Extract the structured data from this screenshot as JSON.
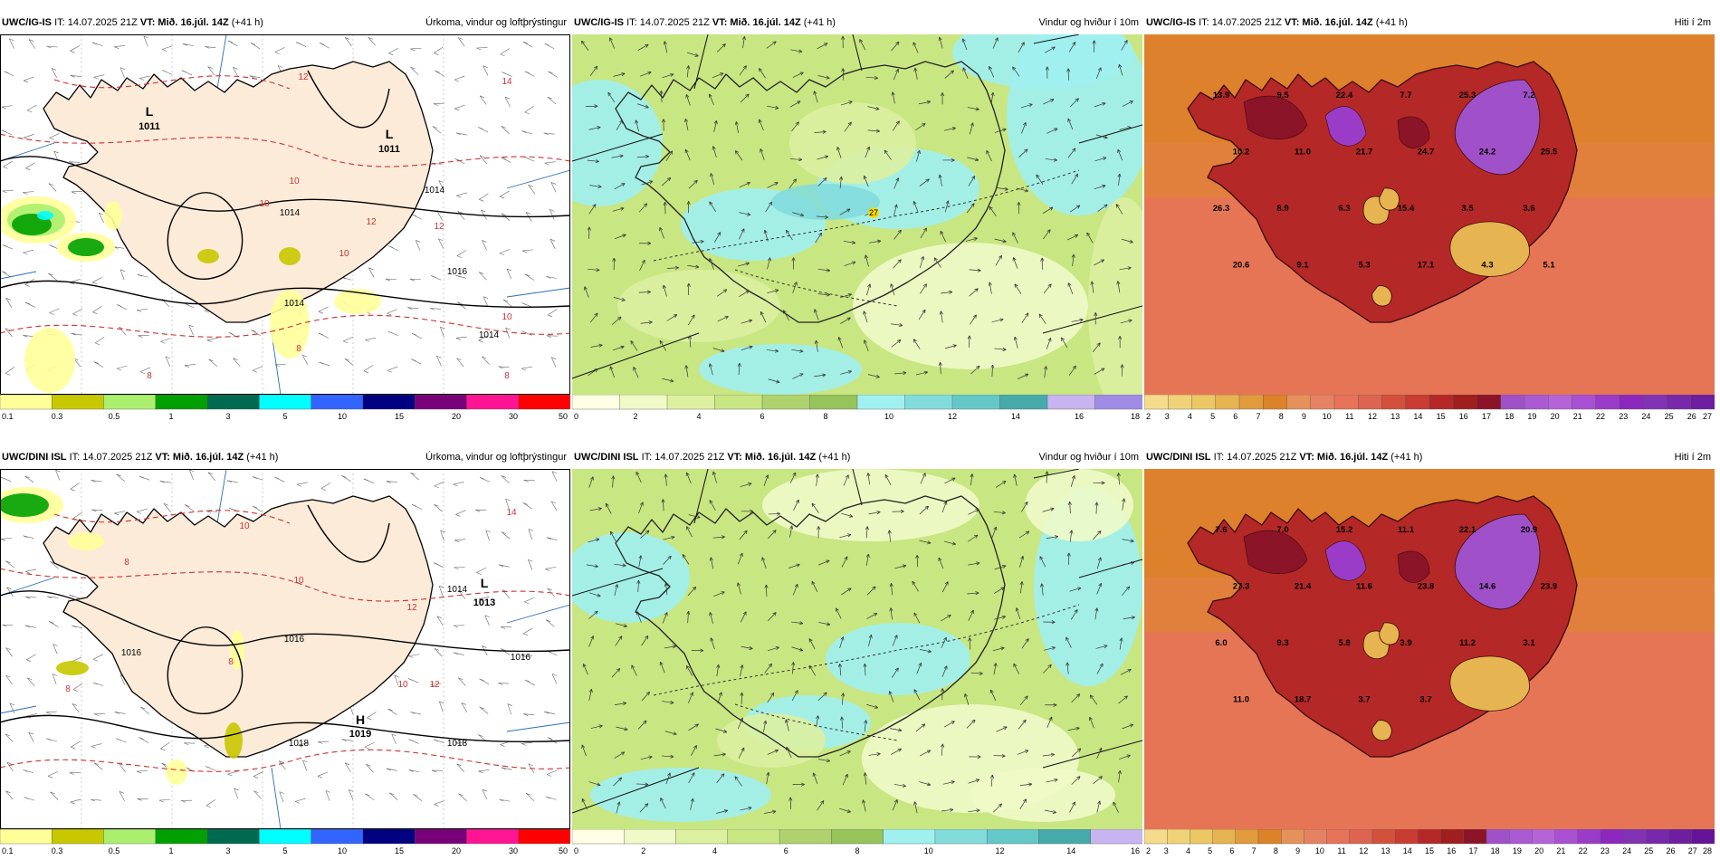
{
  "panels": [
    {
      "model": "UWC/IG-IS",
      "it": "IT: 14.07.2025 21Z",
      "vt_label": "VT:",
      "vt": "Mið. 16.júl. 14Z",
      "lead": "(+41 h)",
      "title": "Úrkoma, vindur og loftþrýstingur",
      "kind": "precip",
      "colorbar": {
        "colors": [
          "#ffff99",
          "#c8c800",
          "#aaf06e",
          "#00a000",
          "#006a50",
          "#00ffff",
          "#3264ff",
          "#000080",
          "#780078",
          "#ff1493",
          "#ff0000"
        ],
        "labels": [
          "0.1",
          "0.3",
          "0.5",
          "1",
          "3",
          "5",
          "10",
          "15",
          "20",
          "30",
          "50"
        ]
      },
      "labels": [
        {
          "t": "L",
          "kind": "pres_letter"
        },
        {
          "t": "1011",
          "kind": "pres_value"
        },
        {
          "t": "L",
          "kind": "pres_letter"
        },
        {
          "t": "1011",
          "kind": "pres_value"
        },
        {
          "t": "12",
          "kind": "red"
        },
        {
          "t": "14",
          "kind": "red"
        },
        {
          "t": "10",
          "kind": "red"
        },
        {
          "t": "10",
          "kind": "red"
        },
        {
          "t": "12",
          "kind": "red"
        },
        {
          "t": "10",
          "kind": "red"
        },
        {
          "t": "12",
          "kind": "red"
        },
        {
          "t": "10",
          "kind": "red"
        },
        {
          "t": "8",
          "kind": "red"
        },
        {
          "t": "8",
          "kind": "red"
        },
        {
          "t": "8",
          "kind": "red"
        },
        {
          "t": "1014",
          "kind": "iso"
        },
        {
          "t": "1014",
          "kind": "iso"
        },
        {
          "t": "1016",
          "kind": "iso"
        },
        {
          "t": "1014",
          "kind": "iso"
        },
        {
          "t": "1014",
          "kind": "iso"
        }
      ]
    },
    {
      "model": "UWC/IG-IS",
      "it": "IT: 14.07.2025 21Z",
      "vt_label": "VT:",
      "vt": "Mið. 16.júl. 14Z",
      "lead": "(+41 h)",
      "title": "Vindur og hviður í 10m",
      "kind": "wind",
      "colorbar": {
        "colors": [
          "#ffffe6",
          "#f0fac8",
          "#dcf0a0",
          "#c8e682",
          "#afd26e",
          "#96c35a",
          "#a0f0f0",
          "#82dcdc",
          "#64c8c8",
          "#46aaaa",
          "#c8b4f0",
          "#a08ce6"
        ],
        "labels": [
          "0",
          "2",
          "4",
          "6",
          "8",
          "10",
          "12",
          "14",
          "16",
          "18"
        ]
      },
      "labels": [
        {
          "t": "27",
          "kind": "gust"
        }
      ]
    },
    {
      "model": "UWC/IG-IS",
      "it": "IT: 14.07.2025 21Z",
      "vt_label": "VT:",
      "vt": "Mið. 16.júl. 14Z",
      "lead": "(+41 h)",
      "title": "Hiti í 2m",
      "kind": "temp",
      "colorbar": {
        "colors": [
          "#f5dc8c",
          "#f0d278",
          "#ebc864",
          "#e6b450",
          "#e19b3c",
          "#dc8228",
          "#e6915a",
          "#e68264",
          "#e6735a",
          "#dc6450",
          "#d2503c",
          "#c83c32",
          "#b42828",
          "#a01e1e",
          "#8c1428",
          "#a050c8",
          "#aa5ad2",
          "#b464d7",
          "#aa50d2",
          "#9b3cc8",
          "#8c28be",
          "#8232b4",
          "#7828aa",
          "#6e1ea0"
        ],
        "labels": [
          "2",
          "3",
          "4",
          "5",
          "6",
          "7",
          "8",
          "9",
          "10",
          "11",
          "12",
          "13",
          "14",
          "15",
          "16",
          "17",
          "18",
          "19",
          "20",
          "21",
          "22",
          "23",
          "24",
          "25",
          "26",
          "27"
        ]
      },
      "labels": [
        {
          "t": "13.9"
        },
        {
          "t": "9.5"
        },
        {
          "t": "22.4"
        },
        {
          "t": "7.7"
        },
        {
          "t": "25.3"
        },
        {
          "t": "7.2"
        },
        {
          "t": "10.2"
        },
        {
          "t": "11.0"
        },
        {
          "t": "21.7"
        },
        {
          "t": "24.7"
        },
        {
          "t": "24.2"
        },
        {
          "t": "25.5"
        },
        {
          "t": "26.3"
        },
        {
          "t": "8.9"
        },
        {
          "t": "6.3"
        },
        {
          "t": "15.4"
        },
        {
          "t": "3.5"
        },
        {
          "t": "3.6"
        },
        {
          "t": "20.6"
        },
        {
          "t": "9.1"
        },
        {
          "t": "5.3"
        },
        {
          "t": "17.1"
        },
        {
          "t": "4.3"
        },
        {
          "t": "5.1"
        }
      ]
    },
    {
      "model": "UWC/DINI ISL",
      "it": "IT: 14.07.2025 21Z",
      "vt_label": "VT:",
      "vt": "Mið. 16.júl. 14Z",
      "lead": "(+41 h)",
      "title": "Úrkoma, vindur og loftþrýstingur",
      "kind": "precip",
      "colorbar": {
        "colors": [
          "#ffff99",
          "#c8c800",
          "#aaf06e",
          "#00a000",
          "#006a50",
          "#00ffff",
          "#3264ff",
          "#000080",
          "#780078",
          "#ff1493",
          "#ff0000"
        ],
        "labels": [
          "0.1",
          "0.3",
          "0.5",
          "1",
          "3",
          "5",
          "10",
          "15",
          "20",
          "30",
          "50"
        ]
      },
      "labels": [
        {
          "t": "L",
          "kind": "pres_letter"
        },
        {
          "t": "1013",
          "kind": "pres_value"
        },
        {
          "t": "H",
          "kind": "pres_letter"
        },
        {
          "t": "1019",
          "kind": "pres_value"
        },
        {
          "t": "10",
          "kind": "red"
        },
        {
          "t": "14",
          "kind": "red"
        },
        {
          "t": "8",
          "kind": "red"
        },
        {
          "t": "10",
          "kind": "red"
        },
        {
          "t": "12",
          "kind": "red"
        },
        {
          "t": "8",
          "kind": "red"
        },
        {
          "t": "8",
          "kind": "red"
        },
        {
          "t": "12",
          "kind": "red"
        },
        {
          "t": "10",
          "kind": "red"
        },
        {
          "t": "1016",
          "kind": "iso"
        },
        {
          "t": "1014",
          "kind": "iso"
        },
        {
          "t": "1016",
          "kind": "iso"
        },
        {
          "t": "1018",
          "kind": "iso"
        },
        {
          "t": "1016",
          "kind": "iso"
        },
        {
          "t": "1018",
          "kind": "iso"
        }
      ]
    },
    {
      "model": "UWC/DINI ISL",
      "it": "IT: 14.07.2025 21Z",
      "vt_label": "VT:",
      "vt": "Mið. 16.júl. 14Z",
      "lead": "(+41 h)",
      "title": "Vindur og hviður í 10m",
      "kind": "wind",
      "colorbar": {
        "colors": [
          "#ffffe6",
          "#f0fac8",
          "#dcf0a0",
          "#c8e682",
          "#afd26e",
          "#96c35a",
          "#a0f0f0",
          "#82dcdc",
          "#64c8c8",
          "#46aaaa",
          "#c8b4f0"
        ],
        "labels": [
          "0",
          "2",
          "4",
          "6",
          "8",
          "10",
          "12",
          "14",
          "16"
        ]
      },
      "labels": []
    },
    {
      "model": "UWC/DINI ISL",
      "it": "IT: 14.07.2025 21Z",
      "vt_label": "VT:",
      "vt": "Mið. 16.júl. 14Z",
      "lead": "(+41 h)",
      "title": "Hiti í 2m",
      "kind": "temp",
      "colorbar": {
        "colors": [
          "#f5dc8c",
          "#f0d278",
          "#ebc864",
          "#e6b450",
          "#e19b3c",
          "#dc8228",
          "#e6915a",
          "#e68264",
          "#e6735a",
          "#dc6450",
          "#d2503c",
          "#c83c32",
          "#b42828",
          "#a01e1e",
          "#8c1428",
          "#a050c8",
          "#aa5ad2",
          "#b464d7",
          "#aa50d2",
          "#9b3cc8",
          "#8c28be",
          "#8232b4",
          "#7828aa",
          "#6e1ea0",
          "#641496"
        ],
        "labels": [
          "2",
          "3",
          "4",
          "5",
          "6",
          "7",
          "8",
          "9",
          "10",
          "11",
          "12",
          "13",
          "14",
          "15",
          "16",
          "17",
          "18",
          "19",
          "20",
          "21",
          "22",
          "23",
          "24",
          "25",
          "26",
          "27",
          "28"
        ]
      },
      "labels": [
        {
          "t": "7.6"
        },
        {
          "t": "7.0"
        },
        {
          "t": "15.2"
        },
        {
          "t": "11.1"
        },
        {
          "t": "22.1"
        },
        {
          "t": "20.9"
        },
        {
          "t": "27.3"
        },
        {
          "t": "21.4"
        },
        {
          "t": "11.6"
        },
        {
          "t": "23.8"
        },
        {
          "t": "14.6"
        },
        {
          "t": "23.9"
        },
        {
          "t": "6.0"
        },
        {
          "t": "9.3"
        },
        {
          "t": "5.8"
        },
        {
          "t": "3.9"
        },
        {
          "t": "11.2"
        },
        {
          "t": "3.1"
        },
        {
          "t": "11.0"
        },
        {
          "t": "18.7"
        },
        {
          "t": "3.7"
        },
        {
          "t": "3.7"
        }
      ]
    }
  ]
}
